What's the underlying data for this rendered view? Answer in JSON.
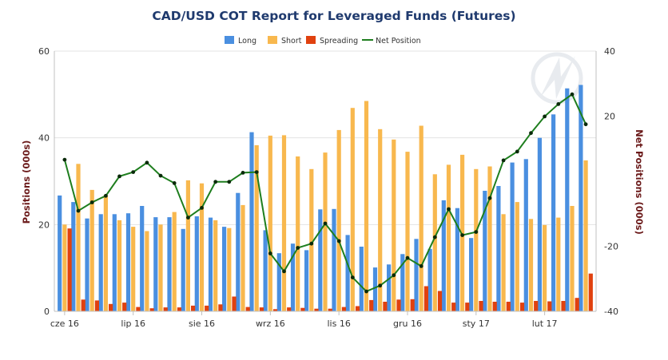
{
  "chart_data": {
    "type": "bar",
    "title": "CAD/USD COT Report for Leveraged Funds (Futures)",
    "ylabel": "Positions (000s)",
    "y2label": "Net Positions (000s)",
    "ylim": [
      0,
      60
    ],
    "y2lim": [
      -40,
      40
    ],
    "yticks": [
      0,
      20,
      40,
      60
    ],
    "y2ticks": [
      -40,
      -20,
      20,
      40
    ],
    "x_labels": [
      {
        "label": "cze 16",
        "index": 0
      },
      {
        "label": "lip 16",
        "index": 5
      },
      {
        "label": "sie 16",
        "index": 10
      },
      {
        "label": "wrz 16",
        "index": 15
      },
      {
        "label": "lis 16",
        "index": 20
      },
      {
        "label": "gru 16",
        "index": 25
      },
      {
        "label": "sty 17",
        "index": 30
      },
      {
        "label": "lut 17",
        "index": 35
      }
    ],
    "legend_position": "top-center",
    "colors": {
      "Long": "#4a8fe0",
      "Short": "#f8b84e",
      "Spreading": "#e0410f",
      "Net Position": "#1e7e1e"
    },
    "series": [
      {
        "name": "Long",
        "type": "bar",
        "values": [
          26.7,
          25.2,
          21.4,
          22.4,
          22.4,
          22.6,
          24.3,
          21.7,
          21.7,
          19.0,
          21.9,
          21.6,
          19.5,
          27.3,
          41.3,
          18.7,
          13.4,
          15.6,
          14.1,
          23.5,
          23.6,
          17.6,
          14.9,
          10.1,
          10.8,
          13.2,
          16.7,
          14.4,
          25.6,
          23.8,
          16.9,
          27.8,
          28.9,
          34.3,
          35.1,
          40.0,
          45.4,
          51.4,
          52.2
        ]
      },
      {
        "name": "Short",
        "type": "bar",
        "values": [
          20.0,
          34.0,
          28.0,
          26.8,
          21.0,
          19.5,
          18.5,
          20.0,
          22.9,
          30.2,
          29.5,
          21.0,
          19.2,
          24.5,
          38.3,
          40.5,
          40.6,
          35.7,
          32.8,
          36.6,
          41.8,
          46.9,
          48.5,
          42.0,
          39.6,
          36.8,
          42.8,
          31.6,
          33.8,
          36.1,
          32.8,
          33.4,
          22.4,
          25.2,
          21.3,
          19.9,
          21.6,
          24.3,
          34.8
        ]
      },
      {
        "name": "Spreading",
        "type": "bar",
        "values": [
          19.1,
          2.7,
          2.5,
          1.7,
          2.0,
          1.0,
          0.7,
          0.9,
          0.9,
          1.3,
          1.3,
          1.6,
          3.4,
          1.0,
          0.9,
          0.5,
          0.9,
          0.8,
          0.6,
          0.6,
          1.0,
          1.2,
          2.6,
          2.2,
          2.7,
          2.8,
          5.8,
          4.7,
          2.0,
          2.0,
          2.4,
          2.2,
          2.2,
          2.0,
          2.4,
          2.3,
          2.4,
          3.1,
          8.7
        ]
      },
      {
        "name": "Net Position",
        "type": "line",
        "values": [
          6.6,
          -9.1,
          -6.5,
          -4.5,
          1.5,
          2.8,
          5.7,
          1.7,
          -0.6,
          -11.2,
          -8.2,
          -0.2,
          -0.2,
          2.6,
          2.8,
          -22.2,
          -27.7,
          -20.5,
          -19.2,
          -13.0,
          -18.4,
          -29.6,
          -33.9,
          -32.1,
          -28.9,
          -23.6,
          -26.1,
          -17.2,
          -8.6,
          -16.6,
          -15.6,
          -5.2,
          6.4,
          9.1,
          14.8,
          19.9,
          23.7,
          26.7,
          17.5
        ]
      }
    ]
  }
}
